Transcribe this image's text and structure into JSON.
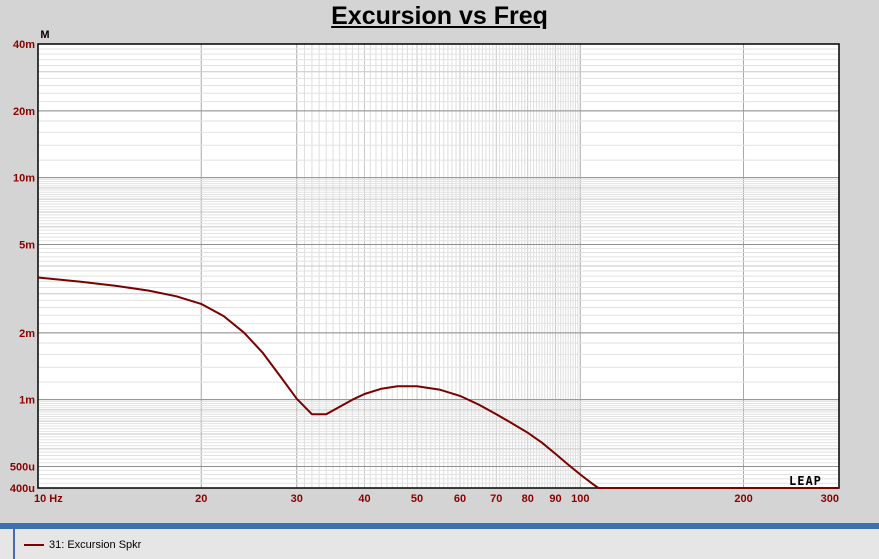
{
  "chart_data": {
    "type": "line",
    "title": "Excursion vs Freq",
    "ylabel": "M",
    "xscale": "log",
    "yscale": "log",
    "xlim": [
      10,
      300
    ],
    "ylim": [
      0.0004,
      0.04
    ],
    "grid": true,
    "x_ticks": [
      {
        "value": 10,
        "label": "10  Hz"
      },
      {
        "value": 20,
        "label": "20"
      },
      {
        "value": 30,
        "label": "30"
      },
      {
        "value": 40,
        "label": "40"
      },
      {
        "value": 50,
        "label": "50"
      },
      {
        "value": 60,
        "label": "60"
      },
      {
        "value": 70,
        "label": "70"
      },
      {
        "value": 80,
        "label": "80"
      },
      {
        "value": 90,
        "label": "90"
      },
      {
        "value": 100,
        "label": "100"
      },
      {
        "value": 200,
        "label": "200"
      },
      {
        "value": 300,
        "label": "300"
      }
    ],
    "y_ticks": [
      {
        "value": 0.04,
        "label": "40m"
      },
      {
        "value": 0.02,
        "label": "20m"
      },
      {
        "value": 0.01,
        "label": "10m"
      },
      {
        "value": 0.005,
        "label": "5m"
      },
      {
        "value": 0.002,
        "label": "2m"
      },
      {
        "value": 0.001,
        "label": "1m"
      },
      {
        "value": 0.0005,
        "label": "500u"
      },
      {
        "value": 0.0004,
        "label": "400u"
      }
    ],
    "series": [
      {
        "name": "31: Excursion Spkr",
        "color": "#7b0000",
        "x": [
          10,
          12,
          14,
          16,
          18,
          20,
          22,
          24,
          26,
          28,
          30,
          32,
          34,
          36,
          38,
          40,
          43,
          46,
          50,
          55,
          60,
          65,
          70,
          75,
          80,
          85,
          90,
          95,
          100,
          105,
          108,
          150,
          200,
          300
        ],
        "y": [
          0.00355,
          0.0034,
          0.00325,
          0.0031,
          0.00292,
          0.0027,
          0.00238,
          0.002,
          0.00162,
          0.00127,
          0.00101,
          0.00086,
          0.00086,
          0.00093,
          0.001,
          0.00106,
          0.00112,
          0.00115,
          0.00115,
          0.00111,
          0.00104,
          0.00095,
          0.00086,
          0.00078,
          0.00071,
          0.00064,
          0.00057,
          0.00051,
          0.00046,
          0.00042,
          0.0004,
          0.0004,
          0.0004,
          0.0004
        ]
      }
    ]
  },
  "legend": {
    "label": "31: Excursion Spkr",
    "color": "#7b0000"
  },
  "logo": "LEAP"
}
